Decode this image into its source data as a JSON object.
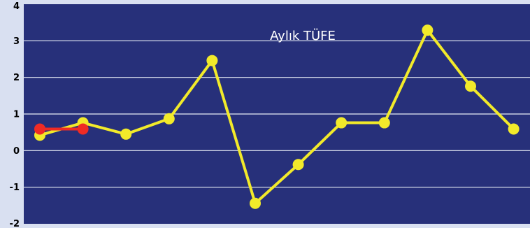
{
  "chart_data": {
    "type": "line",
    "title": "Aylık TÜFE",
    "xlabel": "",
    "ylabel": "",
    "ylim": [
      -2,
      4
    ],
    "yticks": [
      "4",
      "3",
      "2",
      "1",
      "0",
      "-1",
      "-2"
    ],
    "grid": true,
    "colors": {
      "plot_background": "#27307a",
      "page_background": "#d9e0f1",
      "gridline": "#e8ecf6",
      "series_1": "#f2ea2a",
      "series_2": "#ef2b24"
    },
    "series": [
      {
        "values": [
          0.42,
          0.76,
          0.45,
          0.87,
          2.46,
          -1.44,
          -0.38,
          0.76,
          0.76,
          3.29,
          1.76,
          0.59
        ]
      },
      {
        "values": [
          0.59,
          0.59
        ]
      }
    ]
  }
}
